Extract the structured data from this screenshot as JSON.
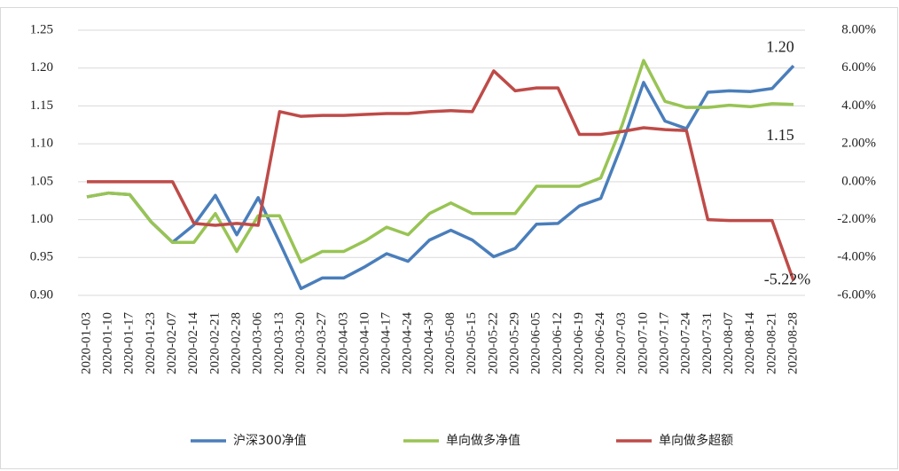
{
  "chart_data": {
    "type": "line",
    "categories": [
      "2020-01-03",
      "2020-01-10",
      "2020-01-17",
      "2020-01-23",
      "2020-02-07",
      "2020-02-14",
      "2020-02-21",
      "2020-02-28",
      "2020-03-06",
      "2020-03-13",
      "2020-03-20",
      "2020-03-27",
      "2020-04-03",
      "2020-04-10",
      "2020-04-17",
      "2020-04-24",
      "2020-04-30",
      "2020-05-08",
      "2020-05-15",
      "2020-05-22",
      "2020-05-29",
      "2020-06-05",
      "2020-06-12",
      "2020-06-19",
      "2020-06-24",
      "2020-07-03",
      "2020-07-10",
      "2020-07-17",
      "2020-07-24",
      "2020-07-31",
      "2020-08-07",
      "2020-08-14",
      "2020-08-21",
      "2020-08-28"
    ],
    "series": [
      {
        "name": "沪深300净值",
        "color": "#4a7ebb",
        "values": [
          1.03,
          1.035,
          1.033,
          0.997,
          0.97,
          0.993,
          1.032,
          0.98,
          1.029,
          0.97,
          0.909,
          0.923,
          0.923,
          0.938,
          0.955,
          0.945,
          0.973,
          0.986,
          0.973,
          0.951,
          0.962,
          0.994,
          0.995,
          1.018,
          1.028,
          1.1,
          1.181,
          1.13,
          1.12,
          1.168,
          1.17,
          1.169,
          1.173,
          1.203
        ]
      },
      {
        "name": "单向做多净值",
        "color": "#98c454",
        "values": [
          1.03,
          1.035,
          1.033,
          0.997,
          0.97,
          0.97,
          1.008,
          0.958,
          1.005,
          1.005,
          0.944,
          0.958,
          0.958,
          0.972,
          0.99,
          0.98,
          1.008,
          1.022,
          1.008,
          1.008,
          1.008,
          1.044,
          1.044,
          1.044,
          1.055,
          1.125,
          1.21,
          1.156,
          1.148,
          1.148,
          1.151,
          1.149,
          1.153,
          1.152
        ]
      },
      {
        "name": "单向做多超额",
        "color": "#be4b48",
        "axis": "y2",
        "values": [
          0,
          0,
          0,
          0,
          0,
          -2.2,
          -2.3,
          -2.2,
          -2.3,
          3.7,
          3.45,
          3.5,
          3.5,
          3.55,
          3.6,
          3.6,
          3.7,
          3.75,
          3.7,
          5.85,
          4.8,
          4.95,
          4.95,
          2.5,
          2.5,
          2.65,
          2.85,
          2.75,
          2.7,
          -2.0,
          -2.05,
          -2.05,
          -2.05,
          -5.22
        ]
      }
    ],
    "annotations": [
      "1.20",
      "1.15",
      "-5.22%"
    ],
    "ylim": [
      0.9,
      1.25
    ],
    "yticks": [
      {
        "value": 0.9,
        "label": "0.90"
      },
      {
        "value": 0.95,
        "label": "0.95"
      },
      {
        "value": 1.0,
        "label": "1.00"
      },
      {
        "value": 1.05,
        "label": "1.05"
      },
      {
        "value": 1.1,
        "label": "1.10"
      },
      {
        "value": 1.15,
        "label": "1.15"
      },
      {
        "value": 1.2,
        "label": "1.20"
      },
      {
        "value": 1.25,
        "label": "1.25"
      }
    ],
    "y2lim": [
      -6,
      8
    ],
    "y2ticks": [
      {
        "value": -6,
        "label": "-6.00%"
      },
      {
        "value": -4,
        "label": "-4.00%"
      },
      {
        "value": -2,
        "label": "-2.00%"
      },
      {
        "value": 0,
        "label": "0.00%"
      },
      {
        "value": 2,
        "label": "2.00%"
      },
      {
        "value": 4,
        "label": "4.00%"
      },
      {
        "value": 6,
        "label": "6.00%"
      },
      {
        "value": 8,
        "label": "8.00%"
      }
    ],
    "grid": true,
    "legend": "bottom"
  }
}
